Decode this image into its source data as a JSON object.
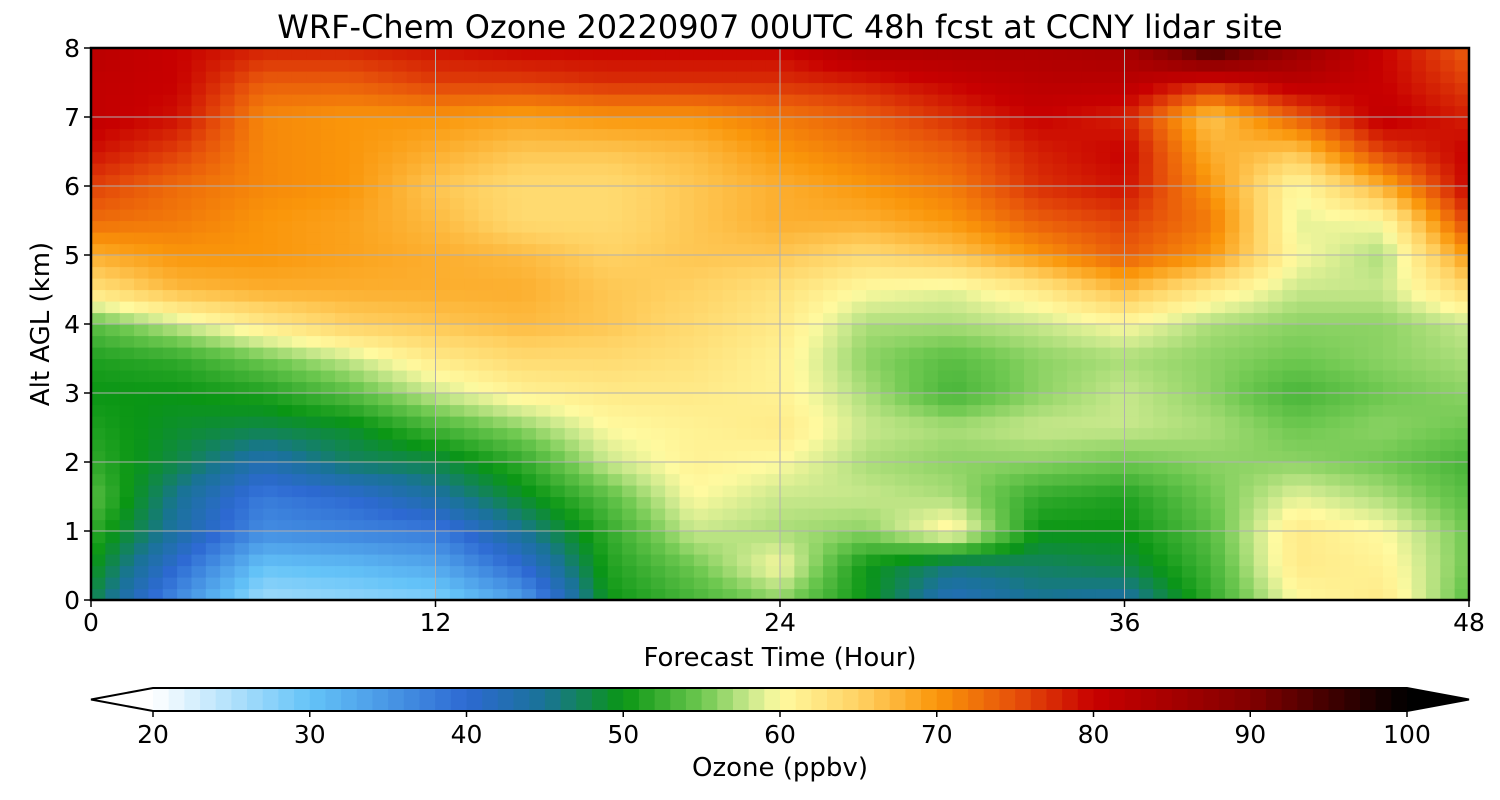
{
  "chart_data": {
    "type": "heatmap",
    "title": "WRF-Chem Ozone  20220907 00UTC 48h fcst at CCNY lidar site",
    "xlabel": "Forecast Time (Hour)",
    "ylabel": "Alt AGL (km)",
    "xlim": [
      0,
      48
    ],
    "ylim": [
      0,
      8
    ],
    "x_ticks": [
      "0",
      "12",
      "24",
      "36",
      "48"
    ],
    "y_ticks": [
      "0",
      "1",
      "2",
      "3",
      "4",
      "5",
      "6",
      "7",
      "8"
    ],
    "grid": true,
    "colorbar": {
      "label": "Ozone  (ppbv)",
      "range": [
        20,
        100
      ],
      "extend": "both",
      "ticks": [
        "20",
        "30",
        "40",
        "50",
        "60",
        "70",
        "80",
        "90",
        "100"
      ]
    },
    "x_hours": [
      0,
      3,
      6,
      9,
      12,
      15,
      18,
      21,
      24,
      27,
      30,
      33,
      36,
      39,
      42,
      45,
      48
    ],
    "y_km": [
      0,
      0.5,
      1,
      1.5,
      2,
      2.5,
      3,
      3.5,
      4,
      4.5,
      5,
      5.5,
      6,
      6.5,
      7,
      7.5,
      8
    ],
    "z_ppbv": [
      [
        48,
        36,
        26,
        27,
        28,
        34,
        50,
        53,
        56,
        50,
        42,
        45,
        44,
        52,
        60,
        62,
        54
      ],
      [
        50,
        40,
        30,
        31,
        33,
        40,
        51,
        55,
        60,
        50,
        46,
        47,
        48,
        53,
        62,
        61,
        55
      ],
      [
        52,
        44,
        36,
        37,
        38,
        45,
        52,
        58,
        57,
        56,
        61,
        50,
        50,
        54,
        62,
        60,
        55
      ],
      [
        54,
        45,
        38,
        40,
        44,
        49,
        54,
        60,
        58,
        58,
        57,
        52,
        51,
        55,
        59,
        57,
        54
      ],
      [
        52,
        48,
        43,
        47,
        48,
        52,
        58,
        61,
        60,
        57,
        56,
        56,
        55,
        56,
        56,
        55,
        53
      ],
      [
        51,
        49,
        48,
        49,
        53,
        56,
        60,
        61,
        62,
        58,
        57,
        58,
        58,
        57,
        55,
        56,
        55
      ],
      [
        50,
        50,
        51,
        54,
        58,
        61,
        62,
        62,
        61,
        57,
        53,
        56,
        58,
        56,
        53,
        55,
        56
      ],
      [
        51,
        52,
        55,
        58,
        62,
        64,
        64,
        63,
        61,
        56,
        54,
        56,
        57,
        56,
        55,
        56,
        57
      ],
      [
        54,
        58,
        62,
        65,
        66,
        67,
        66,
        64,
        62,
        57,
        57,
        58,
        60,
        57,
        56,
        56,
        58
      ],
      [
        63,
        67,
        68,
        68,
        68,
        68,
        66,
        65,
        63,
        60,
        59,
        62,
        67,
        62,
        58,
        58,
        64
      ],
      [
        68,
        70,
        70,
        69,
        68,
        67,
        65,
        66,
        66,
        64,
        66,
        70,
        74,
        70,
        60,
        57,
        70
      ],
      [
        73,
        72,
        70,
        69,
        67,
        64,
        64,
        66,
        68,
        68,
        70,
        74,
        76,
        72,
        59,
        60,
        76
      ],
      [
        76,
        73,
        71,
        70,
        66,
        64,
        64,
        66,
        68,
        70,
        72,
        77,
        79,
        70,
        60,
        68,
        80
      ],
      [
        79,
        76,
        71,
        70,
        68,
        66,
        66,
        67,
        70,
        72,
        74,
        78,
        80,
        68,
        66,
        76,
        80
      ],
      [
        81,
        79,
        71,
        70,
        70,
        69,
        70,
        70,
        72,
        74,
        77,
        80,
        78,
        66,
        74,
        81,
        78
      ],
      [
        81,
        80,
        74,
        74,
        76,
        76,
        77,
        77,
        77,
        78,
        80,
        82,
        82,
        78,
        82,
        80,
        76
      ],
      [
        82,
        80,
        78,
        78,
        79,
        80,
        80,
        80,
        80,
        84,
        84,
        84,
        85,
        96,
        87,
        80,
        74
      ]
    ]
  }
}
